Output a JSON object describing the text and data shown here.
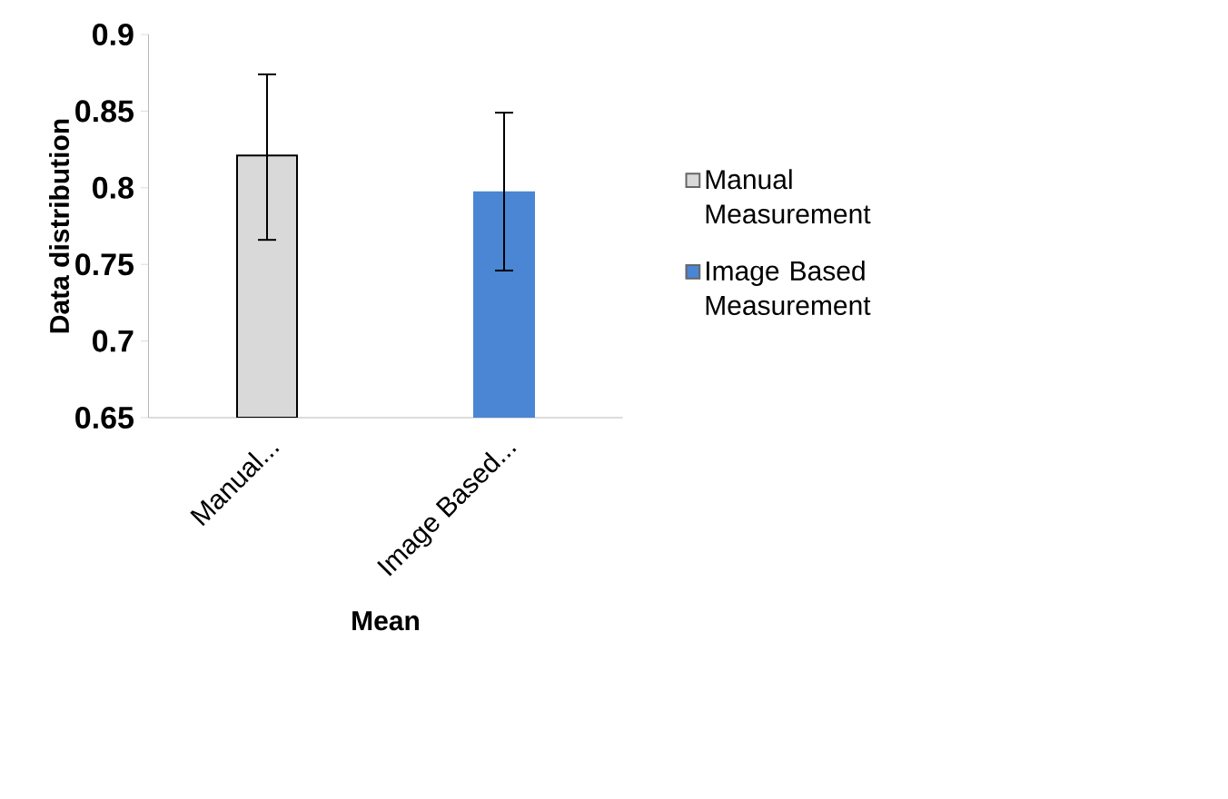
{
  "chart_data": {
    "type": "bar",
    "xlabel": "Mean",
    "ylabel": "Data distribution",
    "categories": [
      "Manual...",
      "Image Based..."
    ],
    "series": [
      {
        "name": "Manual Measurement",
        "color": "#d9d9d9",
        "values": [
          0.821,
          null
        ],
        "errors": [
          [
            0.766,
            0.874
          ],
          null
        ]
      },
      {
        "name": "Image Based Measurement",
        "color": "#4a86d4",
        "values": [
          null,
          0.797
        ],
        "errors": [
          null,
          [
            0.746,
            0.849
          ]
        ]
      }
    ],
    "ylim": [
      0.65,
      0.9
    ],
    "yticks": [
      0.65,
      0.7,
      0.75,
      0.8,
      0.85,
      0.9
    ],
    "grid": false,
    "legend": "right"
  }
}
